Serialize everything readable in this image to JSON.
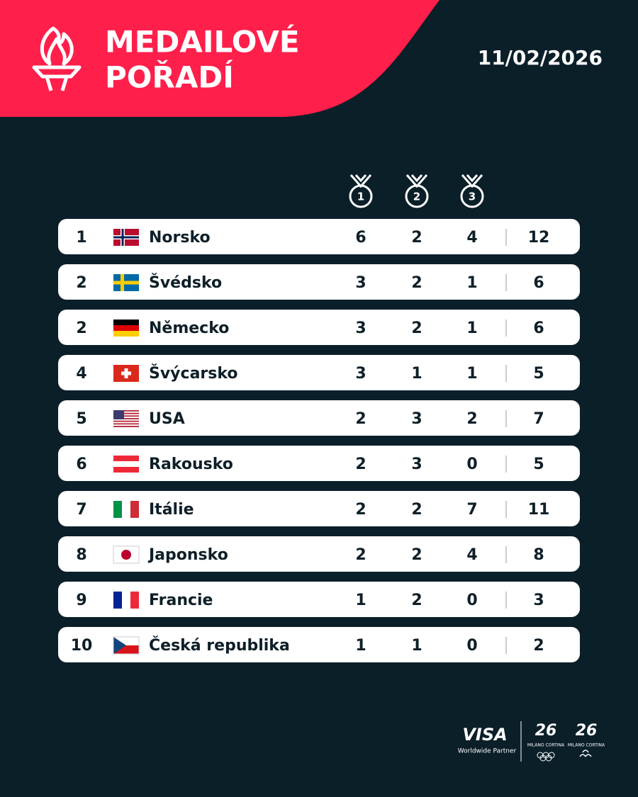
{
  "header": {
    "title_lines": [
      "MEDAILOVÉ",
      "POŘADÍ"
    ],
    "date": "11/02/2026"
  },
  "table": {
    "medal_columns": [
      "1",
      "2",
      "3"
    ],
    "rows": [
      [
        "1",
        "Norsko",
        "6",
        "2",
        "4",
        "12"
      ],
      [
        "2",
        "Švédsko",
        "3",
        "2",
        "1",
        "6"
      ],
      [
        "2",
        "Německo",
        "3",
        "2",
        "1",
        "6"
      ],
      [
        "4",
        "Švýcarsko",
        "3",
        "1",
        "1",
        "5"
      ],
      [
        "5",
        "USA",
        "2",
        "3",
        "2",
        "7"
      ],
      [
        "6",
        "Rakousko",
        "2",
        "3",
        "0",
        "5"
      ],
      [
        "7",
        "Itálie",
        "2",
        "2",
        "7",
        "11"
      ],
      [
        "8",
        "Japonsko",
        "2",
        "2",
        "4",
        "8"
      ],
      [
        "9",
        "Francie",
        "1",
        "2",
        "0",
        "3"
      ],
      [
        "10",
        "Česká republika",
        "1",
        "1",
        "0",
        "2"
      ]
    ]
  },
  "footer": {
    "partner": "VISA",
    "partner_note": "Worldwide Partner",
    "logos": [
      {
        "mark": "26",
        "text": "MILANO CORTINA"
      },
      {
        "mark": "26",
        "text": "MILANO CORTINA"
      }
    ]
  }
}
